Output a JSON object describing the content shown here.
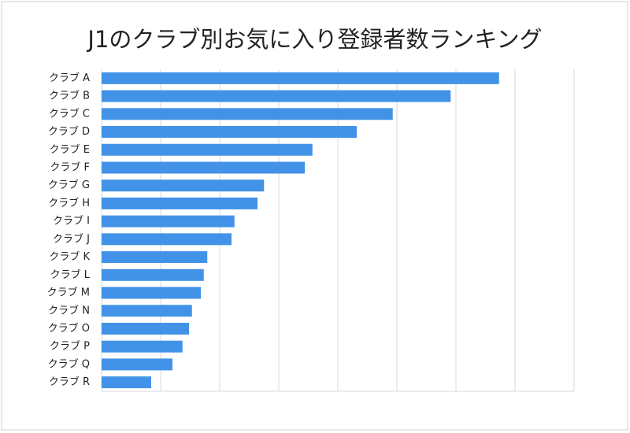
{
  "chart_data": {
    "type": "barh",
    "title": "J1のクラブ別お気に入り登録者数ランキング",
    "categories": [
      "クラブ A",
      "クラブ B",
      "クラブ C",
      "クラブ D",
      "クラブ E",
      "クラブ F",
      "クラブ G",
      "クラブ H",
      "クラブ I",
      "クラブ J",
      "クラブ K",
      "クラブ L",
      "クラブ M",
      "クラブ N",
      "クラブ O",
      "クラブ P",
      "クラブ Q",
      "クラブ R"
    ],
    "values": [
      6.73,
      5.91,
      4.93,
      4.32,
      3.57,
      3.44,
      2.75,
      2.64,
      2.25,
      2.2,
      1.79,
      1.73,
      1.68,
      1.53,
      1.48,
      1.37,
      1.2,
      0.84
    ],
    "color": "#4293e8",
    "xlim": [
      0,
      8
    ],
    "xticks": [
      0,
      1,
      2,
      3,
      4,
      5,
      6,
      7,
      8
    ],
    "grid": true
  }
}
